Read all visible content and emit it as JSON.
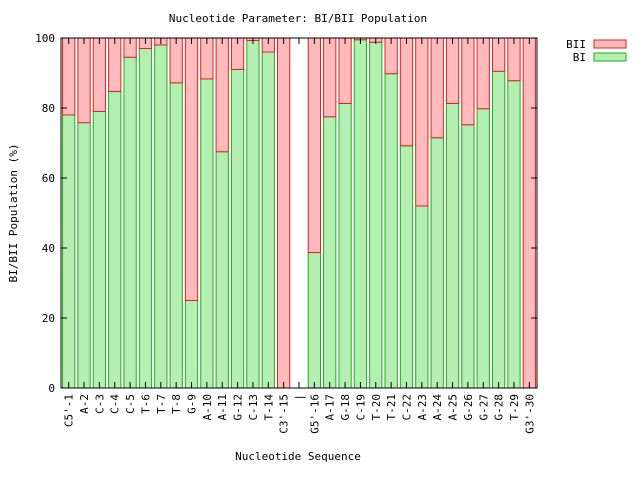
{
  "chart_data": {
    "type": "bar",
    "stacked": true,
    "title": "Nucleotide Parameter: BI/BII Population",
    "xlabel": "Nucleotide Sequence",
    "ylabel": "BI/BII Population (%)",
    "ylim": [
      0,
      100
    ],
    "yticks": [
      0,
      20,
      40,
      60,
      80,
      100
    ],
    "grid": false,
    "legend_placement": "top-right, outside plot",
    "categories": [
      "C5'-1",
      "A-2",
      "C-3",
      "C-4",
      "C-5",
      "T-6",
      "T-7",
      "T-8",
      "G-9",
      "A-10",
      "A-11",
      "G-12",
      "C-13",
      "T-14",
      "C3'-15",
      "|",
      "G5'-16",
      "A-17",
      "G-18",
      "C-19",
      "T-20",
      "T-21",
      "C-22",
      "A-23",
      "A-24",
      "A-25",
      "G-26",
      "G-27",
      "G-28",
      "T-29",
      "G3'-30"
    ],
    "series": [
      {
        "name": "BI",
        "color": "#b3efb0",
        "edge_color": "#22aa22",
        "values": [
          78,
          75.8,
          79,
          84.7,
          94.5,
          97,
          98,
          87.2,
          25,
          88.3,
          67.5,
          91,
          99.3,
          96,
          0,
          null,
          38.7,
          77.5,
          81.3,
          99.5,
          98.8,
          89.8,
          69.2,
          52,
          71.5,
          81.3,
          75.2,
          79.8,
          90.5,
          87.8,
          0
        ]
      },
      {
        "name": "BII",
        "color": "#ffbbbb",
        "edge_color": "#dd2222",
        "values": [
          22,
          24.2,
          21,
          15.3,
          5.5,
          3,
          2,
          12.8,
          75,
          11.7,
          32.5,
          9,
          0.7,
          4,
          100,
          null,
          61.3,
          22.5,
          18.7,
          0.5,
          1.2,
          10.2,
          30.8,
          48,
          28.5,
          18.7,
          24.8,
          20.2,
          9.5,
          12.2,
          100
        ]
      }
    ]
  }
}
